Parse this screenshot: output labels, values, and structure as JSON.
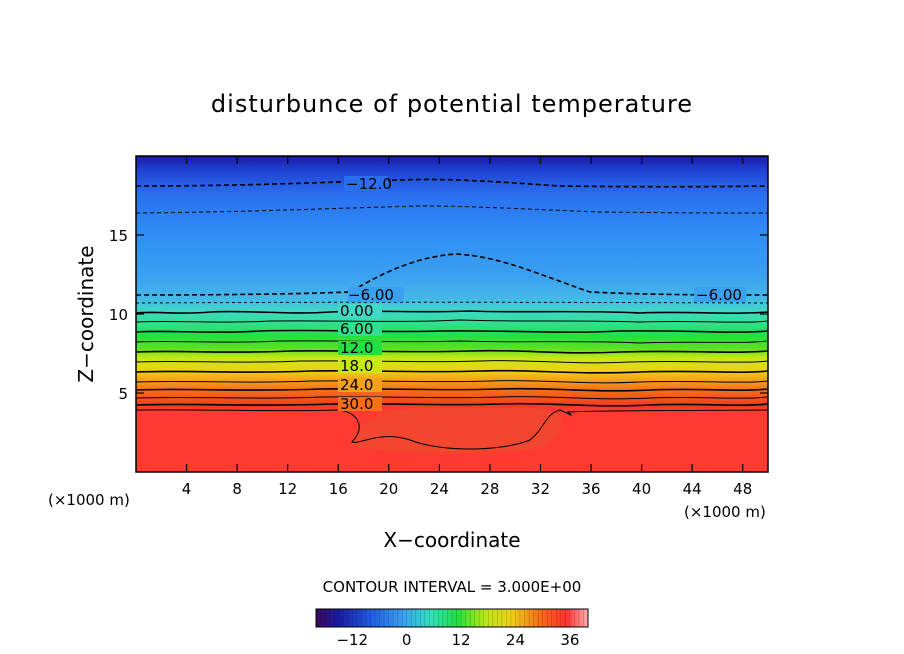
{
  "chart_data": {
    "type": "contour",
    "title": "disturbunce of potential temperature",
    "xlabel": "X−coordinate",
    "ylabel": "Z−coordinate",
    "x_unit": "(×1000 m)",
    "x_unit_right": "(×1000 m)",
    "xlim": [
      0,
      50
    ],
    "ylim": [
      0,
      20
    ],
    "x_ticks": [
      4,
      8,
      12,
      16,
      20,
      24,
      28,
      32,
      36,
      40,
      44,
      48
    ],
    "y_ticks": [
      5,
      10,
      15
    ],
    "contour_interval_text": "CONTOUR INTERVAL = 3.000E+00",
    "contour_interval": 3.0,
    "contour_labels": [
      {
        "text": "−12.0",
        "x": 19,
        "z": 18.1
      },
      {
        "text": "−6.00",
        "x": 19,
        "z": 11.2
      },
      {
        "text": "−6.00",
        "x": 46,
        "z": 11.2
      },
      {
        "text": "0.00",
        "x": 18,
        "z": 10.3
      },
      {
        "text": "6.00",
        "x": 18,
        "z": 9.2
      },
      {
        "text": "12.0",
        "x": 18,
        "z": 8.1
      },
      {
        "text": "18.0",
        "x": 18,
        "z": 7.0
      },
      {
        "text": "24.0",
        "x": 18,
        "z": 5.7
      },
      {
        "text": "30.0",
        "x": 18,
        "z": 4.4
      }
    ],
    "colorbar": {
      "min": -20,
      "max": 40,
      "ticks": [
        -12,
        0,
        12,
        24,
        36
      ],
      "tick_labels": [
        "−12",
        "0",
        "12",
        "24",
        "36"
      ]
    }
  }
}
